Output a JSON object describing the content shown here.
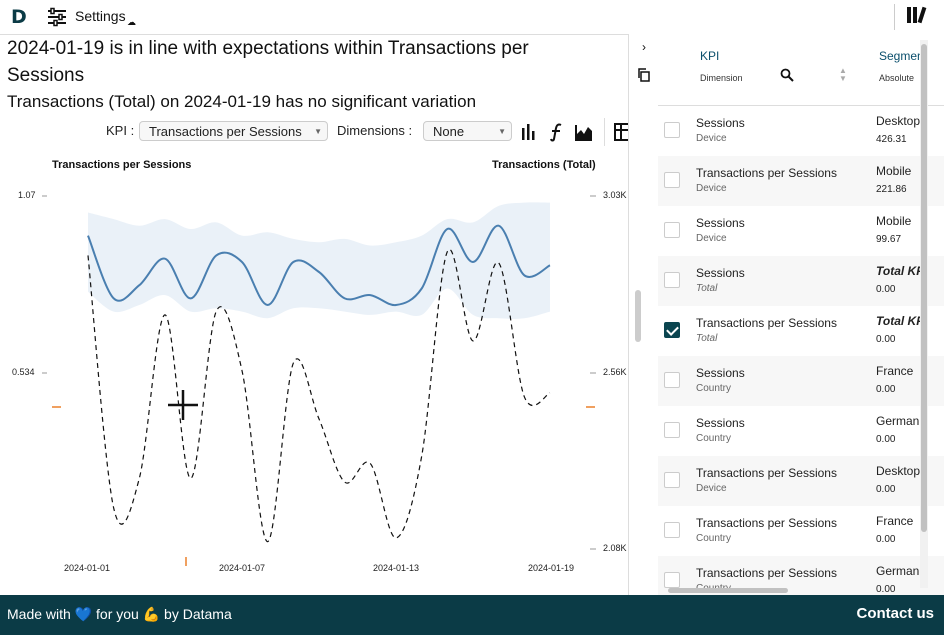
{
  "app": {
    "logo": "D",
    "settings_label": "Settings",
    "cloud_glyph": "☁"
  },
  "headline": "2024-01-19 is in line with expectations within Transactions per Sessions",
  "subheadline": "Transactions (Total) on 2024-01-19 has no significant variation",
  "controls": {
    "kpi_label": "KPI :",
    "kpi_value": "Transactions per Sessions",
    "dim_label": "Dimensions :",
    "dim_value": "None"
  },
  "icons": {
    "bar": "bar-chart-icon",
    "function": "function-icon",
    "area": "area-chart-icon",
    "table": "table-icon",
    "library": "library-icon",
    "copy": "copy-icon",
    "collapse": "chevron-right-icon"
  },
  "colors": {
    "brand": "#0b3b46",
    "line": "#4a7fb0",
    "band": "#eaf1f8",
    "marker": "#f0a060"
  },
  "chart_data": {
    "type": "line",
    "left_axis_title": "Transactions per Sessions",
    "right_axis_title": "Transactions (Total)",
    "left_ticks": [
      "1.07",
      "0.534"
    ],
    "right_ticks": [
      "3.03K",
      "2.56K",
      "2.08K"
    ],
    "x_ticks": [
      "2024-01-01",
      "2024-01-07",
      "2024-01-13",
      "2024-01-19"
    ],
    "ylim_left": [
      0.534,
      1.07
    ],
    "ylim_right": [
      2080,
      3030
    ],
    "series": [
      {
        "name": "Transactions per Sessions",
        "axis": "left",
        "values": [
          0.95,
          0.76,
          0.8,
          0.88,
          0.76,
          0.89,
          0.87,
          0.74,
          0.87,
          0.84,
          0.76,
          0.77,
          0.74,
          0.79,
          0.97,
          0.87,
          0.98,
          0.83,
          0.86
        ]
      },
      {
        "name": "Transactions (Total)",
        "axis": "right",
        "values": [
          2870,
          2190,
          2270,
          2710,
          2270,
          2720,
          2560,
          2100,
          2580,
          2430,
          2260,
          2310,
          2110,
          2330,
          2880,
          2640,
          2850,
          2490,
          2500
        ]
      }
    ],
    "band": {
      "upper": [
        1.02,
        1.0,
        0.98,
        1.0,
        0.97,
        0.99,
        0.95,
        0.96,
        0.94,
        0.93,
        0.94,
        0.92,
        0.93,
        0.95,
        1.0,
        0.99,
        1.04,
        1.05,
        1.05
      ],
      "lower": [
        0.78,
        0.72,
        0.74,
        0.77,
        0.72,
        0.73,
        0.72,
        0.7,
        0.73,
        0.73,
        0.72,
        0.71,
        0.72,
        0.71,
        0.79,
        0.71,
        0.7,
        0.7,
        0.72
      ]
    }
  },
  "panel": {
    "header": {
      "kpi": "KPI",
      "dimension": "Dimension",
      "segment": "Segmen",
      "absolute": "Absolute"
    },
    "rows": [
      {
        "kpi": "Sessions",
        "dim": "Device",
        "seg": "Desktop",
        "val": "426.31",
        "checked": false
      },
      {
        "kpi": "Transactions per Sessions",
        "dim": "Device",
        "seg": "Mobile",
        "val": "221.86",
        "checked": false
      },
      {
        "kpi": "Sessions",
        "dim": "Device",
        "seg": "Mobile",
        "val": "99.67",
        "checked": false
      },
      {
        "kpi": "Sessions",
        "dim": "Total",
        "seg": "Total KP",
        "val": "0.00",
        "checked": false
      },
      {
        "kpi": "Transactions per Sessions",
        "dim": "Total",
        "seg": "Total KP",
        "val": "0.00",
        "checked": true
      },
      {
        "kpi": "Sessions",
        "dim": "Country",
        "seg": "France",
        "val": "0.00",
        "checked": false
      },
      {
        "kpi": "Sessions",
        "dim": "Country",
        "seg": "German",
        "val": "0.00",
        "checked": false
      },
      {
        "kpi": "Transactions per Sessions",
        "dim": "Device",
        "seg": "Desktop",
        "val": "0.00",
        "checked": false
      },
      {
        "kpi": "Transactions per Sessions",
        "dim": "Country",
        "seg": "France",
        "val": "0.00",
        "checked": false
      },
      {
        "kpi": "Transactions per Sessions",
        "dim": "Country",
        "seg": "German",
        "val": "0.00",
        "checked": false
      }
    ]
  },
  "footer": {
    "made_with": "Made with 💙 for you 💪 by Datama",
    "contact": "Contact us"
  }
}
